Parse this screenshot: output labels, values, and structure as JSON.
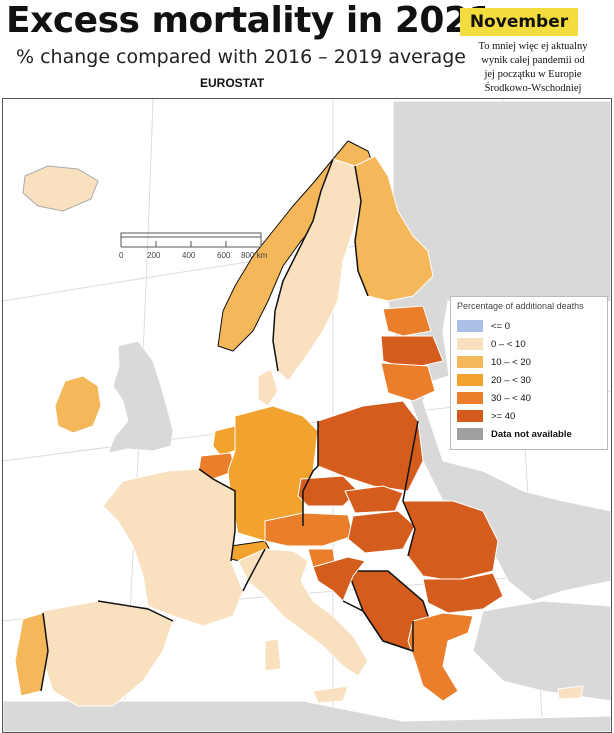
{
  "header": {
    "title": "Excess mortality in 2021",
    "subtitle": "% change compared with 2016 – 2019 average",
    "source": "EUROSTAT",
    "month": "November",
    "note": "To mniej więc ej aktualny wynik całej pandemii od jej początku w Europie Środkowo-Wschodniej"
  },
  "scale_bar": {
    "ticks": [
      "0",
      "200",
      "400",
      "600",
      "800 km"
    ]
  },
  "legend": {
    "title": "Percentage of additional deaths",
    "items": [
      {
        "label": "<= 0",
        "color": "#a9bfe3"
      },
      {
        "label": "0 – < 10",
        "color": "#f9e1c0"
      },
      {
        "label": "10 – < 20",
        "color": "#f4b75a"
      },
      {
        "label": "20 – < 30",
        "color": "#f1a32e"
      },
      {
        "label": "30 – < 40",
        "color": "#ea7e2a"
      },
      {
        "label": ">= 40",
        "color": "#d45c1d"
      },
      {
        "label": "Data not available",
        "color": "#a0a0a0"
      }
    ]
  },
  "colors": {
    "sea": "#ffffff",
    "non_eu": "#d9d9d9",
    "border": "#111111"
  }
}
